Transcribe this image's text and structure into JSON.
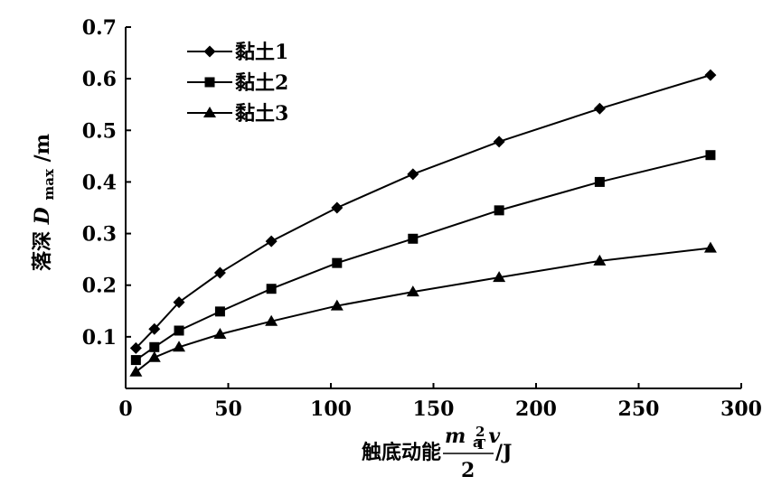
{
  "chart_data": {
    "type": "line",
    "xlabel": {
      "prefix": "触底动能",
      "num_m": "m",
      "num_m_sub": "a",
      "num_v": "v",
      "num_v_sub": "T",
      "num_v_sup": "2",
      "den": "2",
      "unit": "/J"
    },
    "ylabel": {
      "prefix": "落深",
      "var": "D",
      "sub": "max",
      "unit": "/m"
    },
    "xlim": [
      0,
      300
    ],
    "ylim": [
      0,
      0.7
    ],
    "xticks": [
      0,
      50,
      100,
      150,
      200,
      250,
      300
    ],
    "yticks": [
      0.1,
      0.2,
      0.3,
      0.4,
      0.5,
      0.6,
      0.7
    ],
    "xtick_labels": [
      "0",
      "50",
      "100",
      "150",
      "200",
      "250",
      "300"
    ],
    "ytick_labels": [
      "0.1",
      "0.2",
      "0.3",
      "0.4",
      "0.5",
      "0.6",
      "0.7"
    ],
    "grid": false,
    "legend_position": "top-left",
    "x": [
      5,
      14,
      26,
      46,
      71,
      103,
      140,
      182,
      231,
      285
    ],
    "series": [
      {
        "name": "黏土1",
        "marker": "diamond",
        "values": [
          0.078,
          0.115,
          0.167,
          0.224,
          0.285,
          0.35,
          0.415,
          0.478,
          0.542,
          0.607
        ]
      },
      {
        "name": "黏土2",
        "marker": "square",
        "values": [
          0.055,
          0.08,
          0.112,
          0.149,
          0.193,
          0.243,
          0.29,
          0.345,
          0.4,
          0.452
        ]
      },
      {
        "name": "黏土3",
        "marker": "triangle",
        "values": [
          0.032,
          0.06,
          0.08,
          0.105,
          0.13,
          0.16,
          0.187,
          0.215,
          0.247,
          0.272
        ]
      }
    ]
  }
}
